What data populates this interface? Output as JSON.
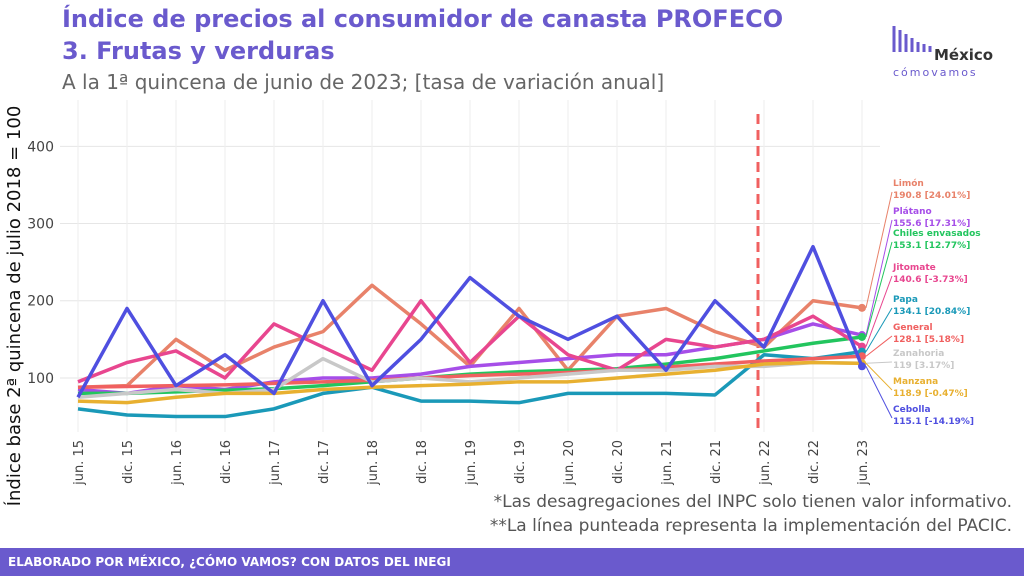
{
  "header": {
    "title_line1": "Índice de precios al consumidor de canasta PROFECO",
    "title_line2": "3. Frutas y verduras",
    "subtitle": "A la 1ª quincena de junio de 2023; [tasa de variación anual]"
  },
  "logo": {
    "name": "México",
    "tagline": "cómovamos"
  },
  "notes": [
    "*Las desagregaciones del INPC solo tienen valor informativo.",
    "**La línea punteada representa la implementación del PACIC."
  ],
  "footer": "ELABORADO POR MÉXICO, ¿CÓMO VAMOS? CON DATOS DEL INEGI",
  "colors": {
    "title": "#6a5acd",
    "Limón": "#e8826a",
    "Plátano": "#a64ee8",
    "Chiles envasados": "#22c55e",
    "Jitomate": "#e8468f",
    "Papa": "#1a99b8",
    "General": "#f06060",
    "Zanahoria": "#c8c8c8",
    "Manzana": "#e8b030",
    "Cebolla": "#4f4fe0",
    "pacic_line": "#f06060"
  },
  "chart_data": {
    "type": "line",
    "ylabel": "Índice base 2ª quincena de julio 2018 = 100",
    "xlabel": "",
    "ylim": [
      30,
      460
    ],
    "yticks": [
      100,
      200,
      300,
      400
    ],
    "x_tick_labels": [
      "jun. 15",
      "dic. 15",
      "jun. 16",
      "dic. 16",
      "jun. 17",
      "dic. 17",
      "jun. 18",
      "dic. 18",
      "jun. 19",
      "dic. 19",
      "jun. 20",
      "dic. 20",
      "jun. 21",
      "dic. 21",
      "jun. 22",
      "dic. 22",
      "jun. 23"
    ],
    "pacic_marker": "jun. 22",
    "series": [
      {
        "name": "Limón",
        "label": "Limón",
        "value_text": "190.8 [24.01%]",
        "x": [
          0,
          1,
          2,
          3,
          4,
          5,
          6,
          7,
          8,
          9,
          10,
          11,
          12,
          13,
          14,
          15,
          16
        ],
        "values": [
          88,
          90,
          150,
          110,
          140,
          160,
          220,
          170,
          115,
          190,
          110,
          180,
          190,
          160,
          140,
          200,
          190.8
        ]
      },
      {
        "name": "Plátano",
        "label": "Plátano",
        "value_text": "155.6 [17.31%]",
        "x": [
          0,
          1,
          2,
          3,
          4,
          5,
          6,
          7,
          8,
          9,
          10,
          11,
          12,
          13,
          14,
          15,
          16
        ],
        "values": [
          85,
          80,
          90,
          85,
          95,
          100,
          100,
          105,
          115,
          120,
          125,
          130,
          130,
          140,
          150,
          170,
          155.6
        ]
      },
      {
        "name": "Chiles envasados",
        "label": "Chiles envasados",
        "value_text": "153.1 [12.77%]",
        "x": [
          0,
          1,
          2,
          3,
          4,
          5,
          6,
          7,
          8,
          9,
          10,
          11,
          12,
          13,
          14,
          15,
          16
        ],
        "values": [
          80,
          80,
          82,
          84,
          86,
          90,
          95,
          100,
          105,
          108,
          110,
          112,
          118,
          125,
          135,
          145,
          153.1
        ]
      },
      {
        "name": "Jitomate",
        "label": "Jitomate",
        "value_text": "140.6 [-3.73%]",
        "x": [
          0,
          1,
          2,
          3,
          4,
          5,
          6,
          7,
          8,
          9,
          10,
          11,
          12,
          13,
          14,
          15,
          16
        ],
        "values": [
          95,
          120,
          135,
          100,
          170,
          140,
          110,
          200,
          120,
          180,
          130,
          110,
          150,
          140,
          150,
          180,
          140.6
        ]
      },
      {
        "name": "Papa",
        "label": "Papa",
        "value_text": "134.1 [20.84%]",
        "x": [
          0,
          1,
          2,
          3,
          4,
          5,
          6,
          7,
          8,
          9,
          10,
          11,
          12,
          13,
          14,
          15,
          16
        ],
        "values": [
          60,
          52,
          50,
          50,
          60,
          80,
          88,
          70,
          70,
          68,
          80,
          80,
          80,
          78,
          130,
          125,
          134.1
        ]
      },
      {
        "name": "General",
        "label": "General",
        "value_text": "128.1 [5.18%]",
        "x": [
          0,
          1,
          2,
          3,
          4,
          5,
          6,
          7,
          8,
          9,
          10,
          11,
          12,
          13,
          14,
          15,
          16
        ],
        "values": [
          88,
          89,
          90,
          91,
          93,
          95,
          97,
          100,
          103,
          105,
          107,
          110,
          114,
          118,
          122,
          125,
          128.1
        ]
      },
      {
        "name": "Zanahoria",
        "label": "Zanahoria",
        "value_text": "119 [3.17%]",
        "x": [
          0,
          1,
          2,
          3,
          4,
          5,
          6,
          7,
          8,
          9,
          10,
          11,
          12,
          13,
          14,
          15,
          16
        ],
        "values": [
          75,
          80,
          85,
          80,
          85,
          125,
          95,
          100,
          95,
          100,
          105,
          110,
          110,
          115,
          115,
          120,
          119
        ]
      },
      {
        "name": "Manzana",
        "label": "Manzana",
        "value_text": "118.9 [-0.47%]",
        "x": [
          0,
          1,
          2,
          3,
          4,
          5,
          6,
          7,
          8,
          9,
          10,
          11,
          12,
          13,
          14,
          15,
          16
        ],
        "values": [
          70,
          68,
          75,
          80,
          80,
          85,
          88,
          90,
          92,
          95,
          95,
          100,
          105,
          110,
          118,
          120,
          118.9
        ]
      },
      {
        "name": "Cebolla",
        "label": "Cebolla",
        "value_text": "115.1 [-14.19%]",
        "x": [
          0,
          1,
          2,
          3,
          4,
          5,
          6,
          7,
          8,
          9,
          10,
          11,
          12,
          13,
          14,
          15,
          16
        ],
        "values": [
          75,
          190,
          90,
          130,
          80,
          200,
          90,
          150,
          230,
          180,
          150,
          180,
          110,
          200,
          140,
          270,
          115.1
        ]
      }
    ]
  }
}
